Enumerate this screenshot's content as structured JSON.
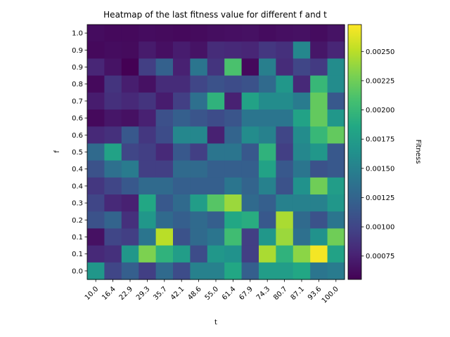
{
  "chart_data": {
    "type": "heatmap",
    "title": "Heatmap of the last fitness value for different f and t",
    "xlabel": "t",
    "ylabel": "f",
    "colorbar_label": "Fitness",
    "colormap": "viridis",
    "vmin": 0.00055,
    "vmax": 0.00273,
    "colorbar_ticks": [
      "0.00075",
      "0.00100",
      "0.00125",
      "0.00150",
      "0.00175",
      "0.00200",
      "0.00225",
      "0.00250"
    ],
    "colorbar_tick_values": [
      0.00075,
      0.001,
      0.00125,
      0.0015,
      0.00175,
      0.002,
      0.00225,
      0.0025
    ],
    "x": [
      "10.0",
      "16.4",
      "22.9",
      "29.3",
      "35.7",
      "42.1",
      "48.6",
      "55.0",
      "61.4",
      "67.9",
      "74.3",
      "80.7",
      "87.1",
      "93.6",
      "100.0"
    ],
    "y": [
      "1.0",
      "0.9",
      "0.9",
      "0.8",
      "0.7",
      "0.6",
      "0.6",
      "0.5",
      "0.4",
      "0.4",
      "0.3",
      "0.2",
      "0.1",
      "0.1",
      "0.0"
    ],
    "values": [
      [
        0.00062,
        0.0006,
        0.0006,
        0.00062,
        0.00061,
        0.0006,
        0.00061,
        0.00063,
        0.00064,
        0.00065,
        0.00062,
        0.00064,
        0.00065,
        0.00062,
        0.00066
      ],
      [
        0.0006,
        0.00062,
        0.00061,
        0.00071,
        0.00064,
        0.00072,
        0.00066,
        0.00082,
        0.0008,
        0.00078,
        0.0009,
        0.00085,
        0.00155,
        0.00068,
        0.00078
      ],
      [
        0.00078,
        0.00066,
        0.00055,
        0.00095,
        0.00122,
        0.00075,
        0.0014,
        0.00088,
        0.0021,
        0.0006,
        0.00148,
        0.00082,
        0.001,
        0.00092,
        0.0016
      ],
      [
        0.0006,
        0.00088,
        0.00073,
        0.00065,
        0.00082,
        0.00082,
        0.001,
        0.0011,
        0.00105,
        0.0011,
        0.0013,
        0.0017,
        0.0008,
        0.002,
        0.0016
      ],
      [
        0.00072,
        0.00085,
        0.0008,
        0.00088,
        0.00072,
        0.00095,
        0.00135,
        0.00195,
        0.00075,
        0.0018,
        0.0016,
        0.0016,
        0.00145,
        0.0022,
        0.00115
      ],
      [
        0.0006,
        0.00068,
        0.00065,
        0.00075,
        0.00108,
        0.0012,
        0.00112,
        0.00105,
        0.00112,
        0.0014,
        0.0014,
        0.0014,
        0.0018,
        0.0022,
        0.0017
      ],
      [
        0.0008,
        0.00085,
        0.00115,
        0.0009,
        0.00105,
        0.00155,
        0.00155,
        0.00075,
        0.00125,
        0.0016,
        0.0015,
        0.001,
        0.0016,
        0.002,
        0.0022
      ],
      [
        0.0013,
        0.0018,
        0.001,
        0.00095,
        0.0008,
        0.00115,
        0.00095,
        0.0014,
        0.0014,
        0.00115,
        0.00195,
        0.00095,
        0.00155,
        0.0017,
        0.00115
      ],
      [
        0.0011,
        0.00135,
        0.00145,
        0.00095,
        0.00095,
        0.0013,
        0.0013,
        0.0012,
        0.0012,
        0.0012,
        0.0018,
        0.00115,
        0.0014,
        0.0011,
        0.00115
      ],
      [
        0.0009,
        0.001,
        0.00115,
        0.0013,
        0.0013,
        0.0012,
        0.0012,
        0.0012,
        0.0014,
        0.00125,
        0.0015,
        0.0011,
        0.00165,
        0.00225,
        0.00175
      ],
      [
        0.001,
        0.0008,
        0.00075,
        0.00185,
        0.00115,
        0.0013,
        0.00175,
        0.00215,
        0.0024,
        0.0013,
        0.0012,
        0.0015,
        0.0015,
        0.0015,
        0.0017
      ],
      [
        0.0011,
        0.00125,
        0.00085,
        0.0017,
        0.0013,
        0.0012,
        0.0013,
        0.0012,
        0.00185,
        0.0019,
        0.00115,
        0.00245,
        0.0013,
        0.0011,
        0.0014
      ],
      [
        0.00065,
        0.001,
        0.00095,
        0.0014,
        0.0025,
        0.0011,
        0.0013,
        0.0014,
        0.00205,
        0.00095,
        0.0017,
        0.0024,
        0.00135,
        0.00165,
        0.00225
      ],
      [
        0.0008,
        0.00085,
        0.0017,
        0.0023,
        0.00195,
        0.00175,
        0.00105,
        0.0017,
        0.00165,
        0.00095,
        0.00245,
        0.00195,
        0.00235,
        0.0027,
        0.0018
      ],
      [
        0.0017,
        0.001,
        0.0012,
        0.00095,
        0.0013,
        0.00105,
        0.0015,
        0.0015,
        0.00185,
        0.0012,
        0.00175,
        0.00175,
        0.00185,
        0.0014,
        0.00145
      ]
    ]
  }
}
